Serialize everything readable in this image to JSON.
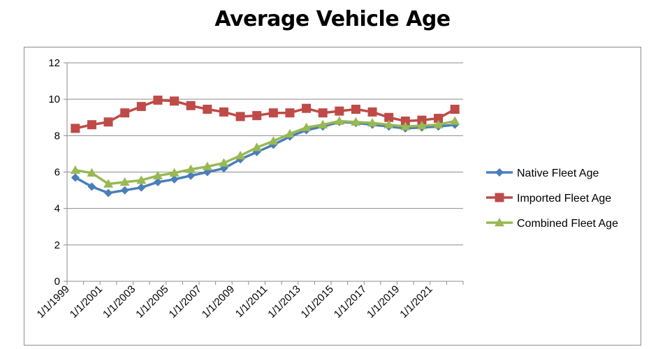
{
  "chart_data": {
    "type": "line",
    "title": "Average Vehicle Age",
    "xlabel": "",
    "ylabel": "",
    "ylim": [
      0,
      12
    ],
    "yticks": [
      0,
      2,
      4,
      6,
      8,
      10,
      12
    ],
    "xtick_labels": [
      "1/1/1999",
      "1/1/2001",
      "1/1/2003",
      "1/1/2005",
      "1/1/2007",
      "1/1/2009",
      "1/1/2011",
      "1/1/2013",
      "1/1/2015",
      "1/1/2017",
      "1/1/2019",
      "1/1/2021"
    ],
    "grid": true,
    "legend_position": "right",
    "x": [
      "1999",
      "2000",
      "2001",
      "2002",
      "2003",
      "2004",
      "2005",
      "2006",
      "2007",
      "2008",
      "2009",
      "2010",
      "2011",
      "2012",
      "2013",
      "2014",
      "2015",
      "2016",
      "2017",
      "2018",
      "2019",
      "2020",
      "2021",
      "2022"
    ],
    "series": [
      {
        "name": "Native Fleet Age",
        "color": "#4a7ebb",
        "marker": "diamond",
        "values": [
          5.7,
          5.2,
          4.85,
          5.0,
          5.15,
          5.45,
          5.6,
          5.8,
          6.0,
          6.2,
          6.7,
          7.1,
          7.5,
          7.95,
          8.3,
          8.5,
          8.75,
          8.7,
          8.6,
          8.5,
          8.4,
          8.45,
          8.5,
          8.6
        ]
      },
      {
        "name": "Imported Fleet Age",
        "color": "#be4b48",
        "marker": "square",
        "values": [
          8.4,
          8.6,
          8.75,
          9.25,
          9.6,
          9.95,
          9.9,
          9.65,
          9.45,
          9.3,
          9.05,
          9.1,
          9.25,
          9.25,
          9.5,
          9.25,
          9.35,
          9.45,
          9.3,
          9.0,
          8.8,
          8.85,
          8.95,
          9.45
        ]
      },
      {
        "name": "Combined Fleet Age",
        "color": "#98b954",
        "marker": "triangle",
        "values": [
          6.1,
          5.95,
          5.35,
          5.45,
          5.55,
          5.8,
          5.95,
          6.15,
          6.3,
          6.5,
          6.9,
          7.35,
          7.7,
          8.1,
          8.45,
          8.6,
          8.8,
          8.75,
          8.7,
          8.6,
          8.5,
          8.55,
          8.6,
          8.8
        ]
      }
    ]
  }
}
